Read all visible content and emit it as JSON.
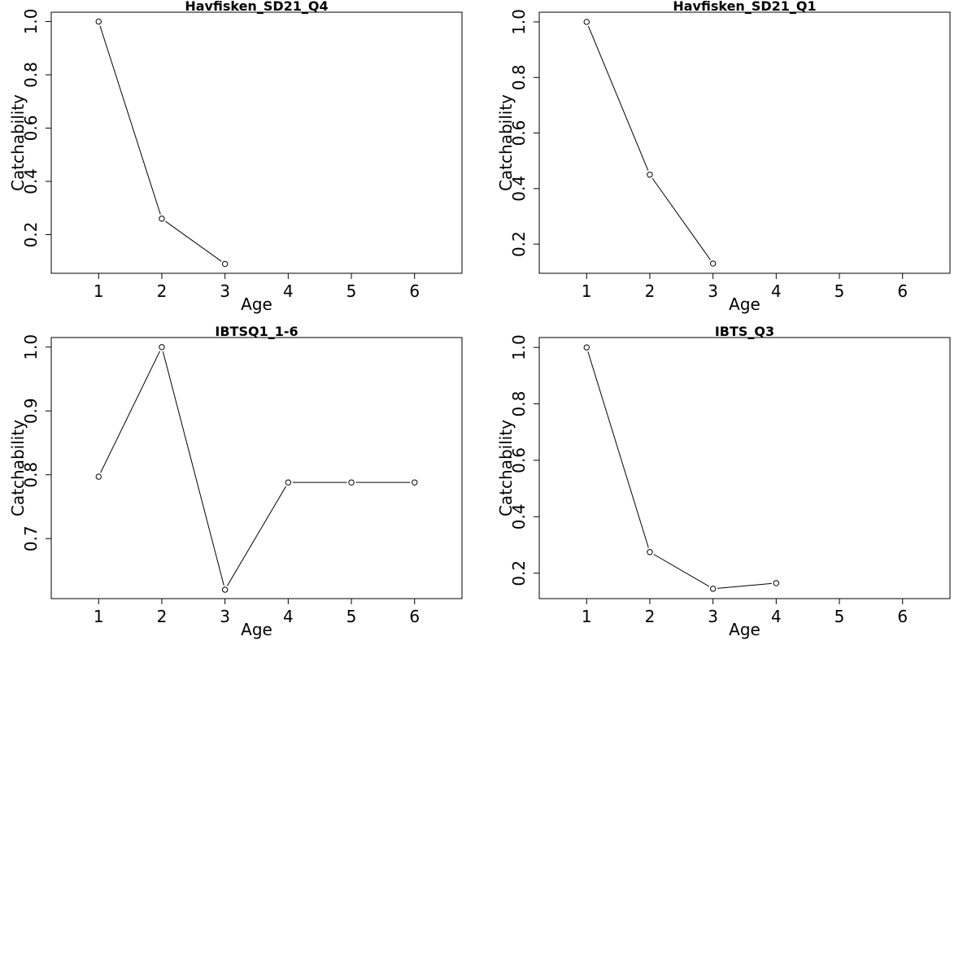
{
  "chart_data": [
    {
      "type": "line",
      "title": "Havfisken_SD21_Q4",
      "xlabel": "Age",
      "ylabel": "Catchability",
      "xlim": [
        0.25,
        6.75
      ],
      "ylim": [
        0.055,
        1.035
      ],
      "x_ticks": [
        1,
        2,
        3,
        4,
        5,
        6
      ],
      "y_ticks": [
        0.2,
        0.4,
        0.6,
        0.8,
        1.0
      ],
      "y_tick_labels": [
        "0.2",
        "0.4",
        "0.6",
        "0.8",
        "1.0"
      ],
      "series": [
        {
          "x": [
            1,
            2,
            3
          ],
          "y": [
            1.0,
            0.26,
            0.09
          ]
        }
      ],
      "grid": false
    },
    {
      "type": "line",
      "title": "Havfisken_SD21_Q1",
      "xlabel": "Age",
      "ylabel": "Catchability",
      "xlim": [
        0.25,
        6.75
      ],
      "ylim": [
        0.095,
        1.035
      ],
      "x_ticks": [
        1,
        2,
        3,
        4,
        5,
        6
      ],
      "y_ticks": [
        0.2,
        0.4,
        0.6,
        0.8,
        1.0
      ],
      "y_tick_labels": [
        "0.2",
        "0.4",
        "0.6",
        "0.8",
        "1.0"
      ],
      "series": [
        {
          "x": [
            1,
            2,
            3
          ],
          "y": [
            1.0,
            0.45,
            0.13
          ]
        }
      ],
      "grid": false
    },
    {
      "type": "line",
      "title": "IBTSQ1_1-6",
      "xlabel": "Age",
      "ylabel": "Catchability",
      "xlim": [
        0.25,
        6.75
      ],
      "ylim": [
        0.606,
        1.015
      ],
      "x_ticks": [
        1,
        2,
        3,
        4,
        5,
        6
      ],
      "y_ticks": [
        0.7,
        0.8,
        0.9,
        1.0
      ],
      "y_tick_labels": [
        "0.7",
        "0.8",
        "0.9",
        "1.0"
      ],
      "series": [
        {
          "x": [
            1,
            2,
            3,
            4,
            5,
            6
          ],
          "y": [
            0.797,
            1.0,
            0.62,
            0.788,
            0.788,
            0.788
          ]
        }
      ],
      "grid": false
    },
    {
      "type": "line",
      "title": "IBTS_Q3",
      "xlabel": "Age",
      "ylabel": "Catchability",
      "xlim": [
        0.25,
        6.75
      ],
      "ylim": [
        0.11,
        1.035
      ],
      "x_ticks": [
        1,
        2,
        3,
        4,
        5,
        6
      ],
      "y_ticks": [
        0.2,
        0.4,
        0.6,
        0.8,
        1.0
      ],
      "y_tick_labels": [
        "0.2",
        "0.4",
        "0.6",
        "0.8",
        "1.0"
      ],
      "series": [
        {
          "x": [
            1,
            2,
            3,
            4
          ],
          "y": [
            1.0,
            0.275,
            0.145,
            0.165
          ]
        }
      ],
      "grid": false
    }
  ]
}
